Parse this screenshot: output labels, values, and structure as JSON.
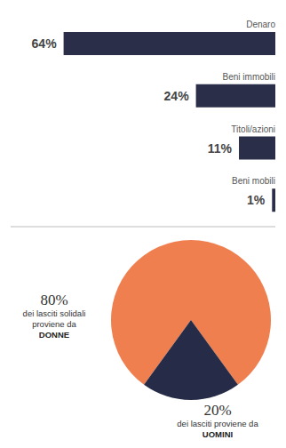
{
  "chart_data": [
    {
      "type": "bar",
      "orientation": "horizontal",
      "categories": [
        "Denaro",
        "Beni immobili",
        "Titoli/azioni",
        "Beni mobili"
      ],
      "values": [
        64,
        24,
        11,
        1
      ],
      "value_labels": [
        "64%",
        "24%",
        "11%",
        "1%"
      ],
      "data_labels": true,
      "xlim": [
        0,
        80
      ],
      "xticks": [],
      "tick_labels": false,
      "color": "#2b2e48"
    },
    {
      "type": "pie",
      "categories": [
        "DONNE",
        "UOMINI"
      ],
      "values": [
        80,
        20
      ],
      "value_labels": [
        "80%",
        "20%"
      ],
      "annotations": [
        "dei lasciti solidali proviene da",
        "dei lasciti proviene da"
      ],
      "colors": [
        "#f07f4f",
        "#262c47"
      ],
      "data_labels": true
    }
  ]
}
